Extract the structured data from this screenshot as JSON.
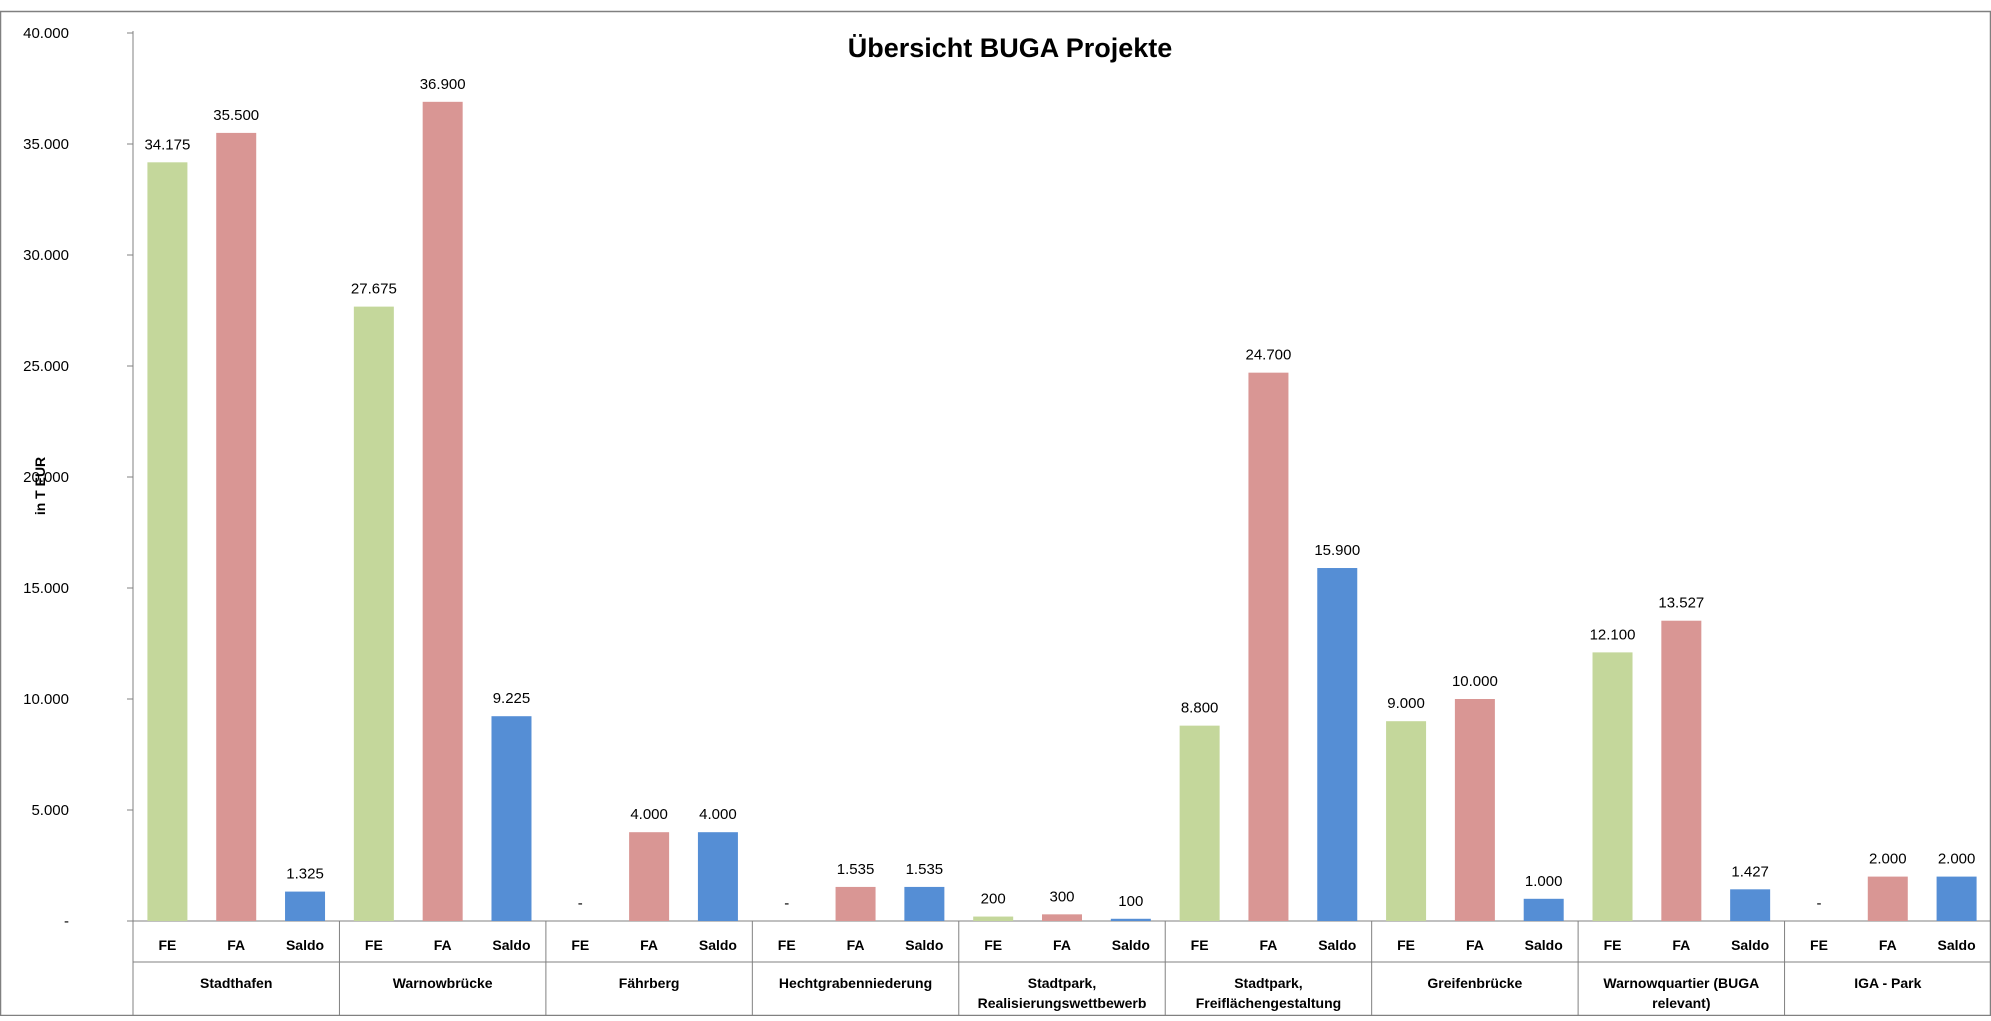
{
  "chart_data": {
    "type": "bar",
    "title": "Übersicht BUGA Projekte",
    "ylabel": "in T EUR",
    "xlabel": "",
    "ylim": [
      0,
      40000
    ],
    "yticks": [
      0,
      5000,
      10000,
      15000,
      20000,
      25000,
      30000,
      35000,
      40000
    ],
    "ytick_labels": [
      "-",
      "5.000",
      "10.000",
      "15.000",
      "20.000",
      "25.000",
      "30.000",
      "35.000",
      "40.000"
    ],
    "grid": false,
    "legend": "none",
    "series_labels": [
      "FE",
      "FA",
      "Saldo"
    ],
    "series_colors": [
      "#c4d79b",
      "#d99694",
      "#558ed5"
    ],
    "groups": [
      {
        "label_lines": [
          "Stadthafen"
        ],
        "values": [
          34175,
          35500,
          1325
        ],
        "value_labels": [
          "34.175",
          "35.500",
          "1.325"
        ]
      },
      {
        "label_lines": [
          "Warnowbrücke"
        ],
        "values": [
          27675,
          36900,
          9225
        ],
        "value_labels": [
          "27.675",
          "36.900",
          "9.225"
        ]
      },
      {
        "label_lines": [
          "Fährberg"
        ],
        "values": [
          0,
          4000,
          4000
        ],
        "value_labels": [
          "-",
          "4.000",
          "4.000"
        ]
      },
      {
        "label_lines": [
          "Hechtgrabenniederung"
        ],
        "values": [
          0,
          1535,
          1535
        ],
        "value_labels": [
          "-",
          "1.535",
          "1.535"
        ]
      },
      {
        "label_lines": [
          "Stadtpark,",
          "Realisierungswettbewerb"
        ],
        "values": [
          200,
          300,
          100
        ],
        "value_labels": [
          "200",
          "300",
          "100"
        ]
      },
      {
        "label_lines": [
          "Stadtpark,",
          "Freiflächengestaltung"
        ],
        "values": [
          8800,
          24700,
          15900
        ],
        "value_labels": [
          "8.800",
          "24.700",
          "15.900"
        ]
      },
      {
        "label_lines": [
          "Greifenbrücke"
        ],
        "values": [
          9000,
          10000,
          1000
        ],
        "value_labels": [
          "9.000",
          "10.000",
          "1.000"
        ]
      },
      {
        "label_lines": [
          "Warnowquartier (BUGA",
          "relevant)"
        ],
        "values": [
          12100,
          13527,
          1427
        ],
        "value_labels": [
          "12.100",
          "13.527",
          "1.427"
        ]
      },
      {
        "label_lines": [
          "IGA - Park"
        ],
        "values": [
          0,
          2000,
          2000
        ],
        "value_labels": [
          "-",
          "2.000",
          "2.000"
        ]
      }
    ]
  }
}
